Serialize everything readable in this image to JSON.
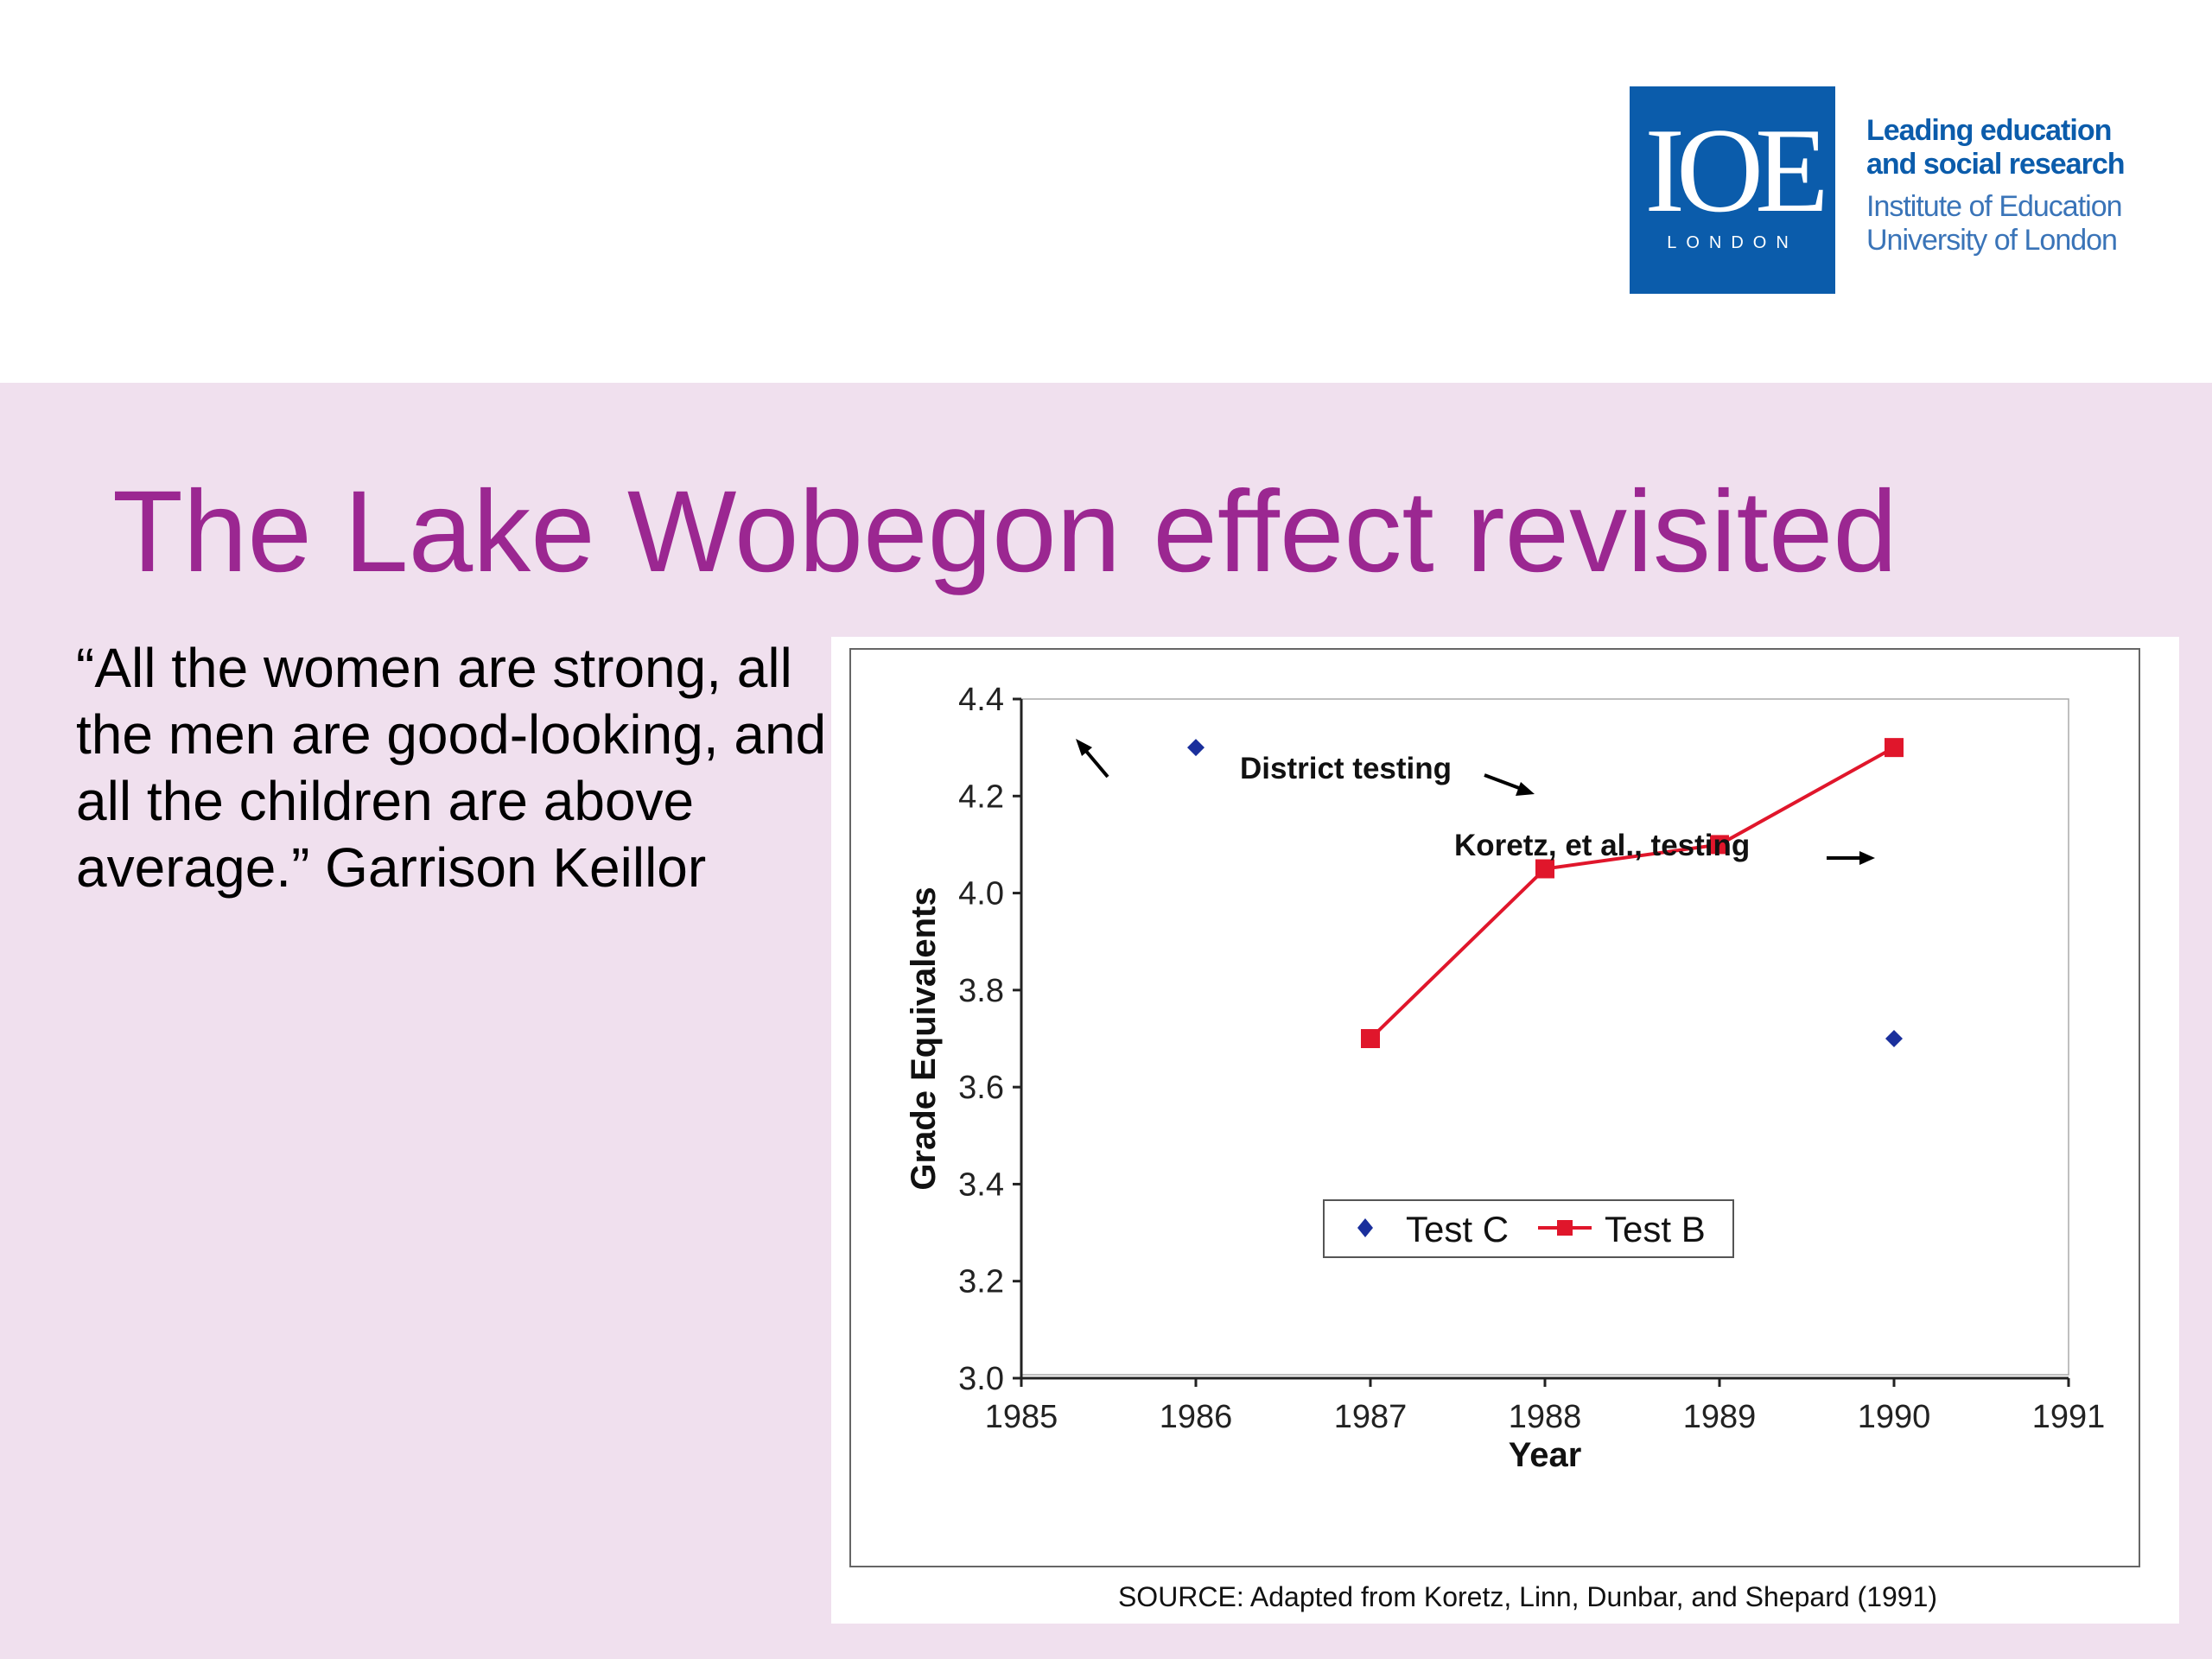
{
  "header": {
    "logo": {
      "mark": "IOE",
      "sub": "LONDON",
      "line1": "Leading education",
      "line2": "and social research",
      "line3": "Institute of Education",
      "line4": "University of London"
    }
  },
  "slide": {
    "title": "The Lake Wobegon effect revisited",
    "quote": "“All the women are strong, all the men are good-looking, and all the children are above average.” Garrison Keillor"
  },
  "colors": {
    "title": "#9b2791",
    "background": "#f0e0ee",
    "logo_blue": "#0b5cab",
    "test_c": "#1a2f9c",
    "test_b": "#e0162b"
  },
  "chart_data": {
    "type": "line",
    "xlabel": "Year",
    "ylabel": "Grade Equivalents",
    "xlim": [
      1985,
      1991
    ],
    "ylim": [
      3.0,
      4.4
    ],
    "x_ticks": [
      "1985",
      "1986",
      "1987",
      "1988",
      "1989",
      "1990",
      "1991"
    ],
    "y_ticks": [
      "4.4",
      "4.2",
      "4.0",
      "3.8",
      "3.6",
      "3.4",
      "3.2",
      "3.0"
    ],
    "series": [
      {
        "name": "Test C",
        "marker": "diamond",
        "line": false,
        "x": [
          1986,
          1990
        ],
        "y": [
          4.3,
          3.7
        ]
      },
      {
        "name": "Test B",
        "marker": "square",
        "line": true,
        "x": [
          1987,
          1988,
          1989,
          1990
        ],
        "y": [
          3.7,
          4.05,
          4.1,
          4.3
        ]
      }
    ],
    "annotations": [
      {
        "text": "District testing"
      },
      {
        "text": "Koretz, et al., testing"
      }
    ],
    "legend": "inside-bottom-center",
    "grid": false,
    "source": "SOURCE: Adapted from Koretz, Linn, Dunbar, and Shepard (1991)"
  }
}
